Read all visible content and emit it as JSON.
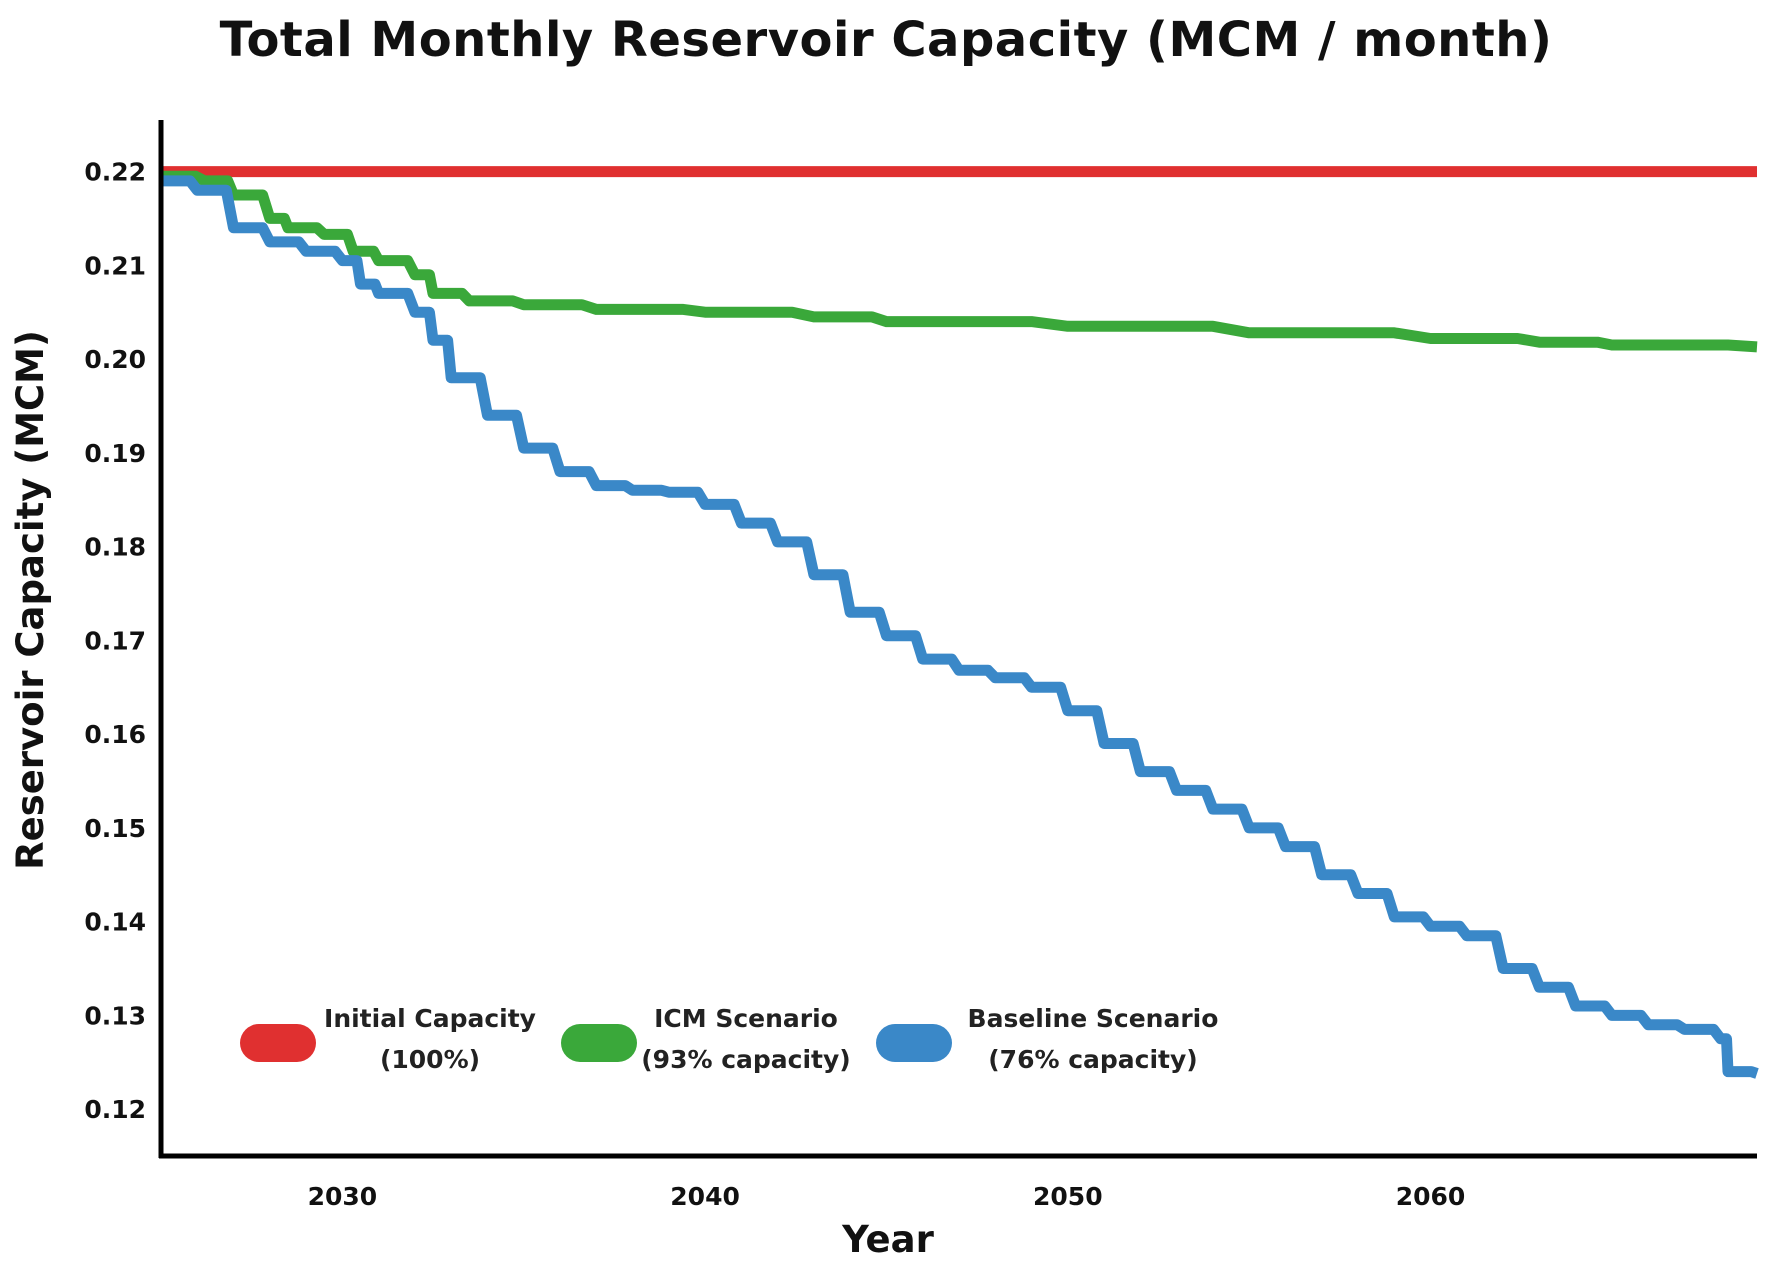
{
  "chart_data": {
    "type": "line",
    "title": "Total Monthly Reservoir Capacity (MCM / month)",
    "xlabel": "Year",
    "ylabel": "Reservoir Capacity (MCM)",
    "xlim": [
      2025,
      2069
    ],
    "ylim": [
      0.115,
      0.2255
    ],
    "xticks": [
      2030,
      2040,
      2050,
      2060
    ],
    "yticks": [
      0.12,
      0.13,
      0.14,
      0.15,
      0.16,
      0.17,
      0.18,
      0.19,
      0.2,
      0.21,
      0.22
    ],
    "grid": false,
    "legend_position": "bottom-left",
    "series": [
      {
        "name": "Initial Capacity",
        "legend_label": [
          "Initial Capacity",
          "(100%)"
        ],
        "color": "#e03030",
        "x": [
          2025,
          2069
        ],
        "y": [
          0.22,
          0.22
        ]
      },
      {
        "name": "ICM Scenario",
        "legend_label": [
          "ICM Scenario",
          "(93% capacity)"
        ],
        "color": "#3aa83a",
        "x": [
          2025,
          2026.2,
          2027.0,
          2028.0,
          2028.5,
          2029.5,
          2030.3,
          2031.0,
          2032.0,
          2032.5,
          2033.5,
          2035.0,
          2037.0,
          2040.0,
          2043.0,
          2045.0,
          2050.0,
          2055.0,
          2060.0,
          2063.0,
          2065.0,
          2069.0
        ],
        "y": [
          0.2195,
          0.219,
          0.2175,
          0.215,
          0.214,
          0.2133,
          0.2115,
          0.2105,
          0.209,
          0.207,
          0.2062,
          0.2058,
          0.2053,
          0.205,
          0.2045,
          0.204,
          0.2035,
          0.2028,
          0.2022,
          0.2018,
          0.2015,
          0.2013
        ]
      },
      {
        "name": "Baseline Scenario",
        "legend_label": [
          "Baseline Scenario",
          "(76% capacity)"
        ],
        "color": "#3a88c8",
        "x": [
          2025,
          2026.0,
          2027.0,
          2028.0,
          2029.0,
          2030.0,
          2030.5,
          2031.0,
          2032.0,
          2032.5,
          2033.0,
          2034.0,
          2035.0,
          2036.0,
          2037.0,
          2038.0,
          2039.0,
          2040.0,
          2041.0,
          2042.0,
          2043.0,
          2044.0,
          2045.0,
          2046.0,
          2047.0,
          2048.0,
          2049.0,
          2050.0,
          2051.0,
          2052.0,
          2053.0,
          2054.0,
          2055.0,
          2056.0,
          2057.0,
          2058.0,
          2059.0,
          2060.0,
          2061.0,
          2062.0,
          2063.0,
          2064.0,
          2065.0,
          2066.0,
          2067.0,
          2068.0,
          2068.2,
          2069.0
        ],
        "y": [
          0.219,
          0.218,
          0.214,
          0.2125,
          0.2115,
          0.2105,
          0.208,
          0.207,
          0.205,
          0.202,
          0.198,
          0.194,
          0.1905,
          0.188,
          0.1865,
          0.186,
          0.1858,
          0.1845,
          0.1825,
          0.1805,
          0.177,
          0.173,
          0.1705,
          0.168,
          0.1668,
          0.166,
          0.165,
          0.1625,
          0.159,
          0.156,
          0.154,
          0.152,
          0.15,
          0.148,
          0.145,
          0.143,
          0.1405,
          0.1395,
          0.1385,
          0.135,
          0.133,
          0.131,
          0.13,
          0.129,
          0.1285,
          0.1275,
          0.124,
          0.1238
        ]
      }
    ]
  }
}
